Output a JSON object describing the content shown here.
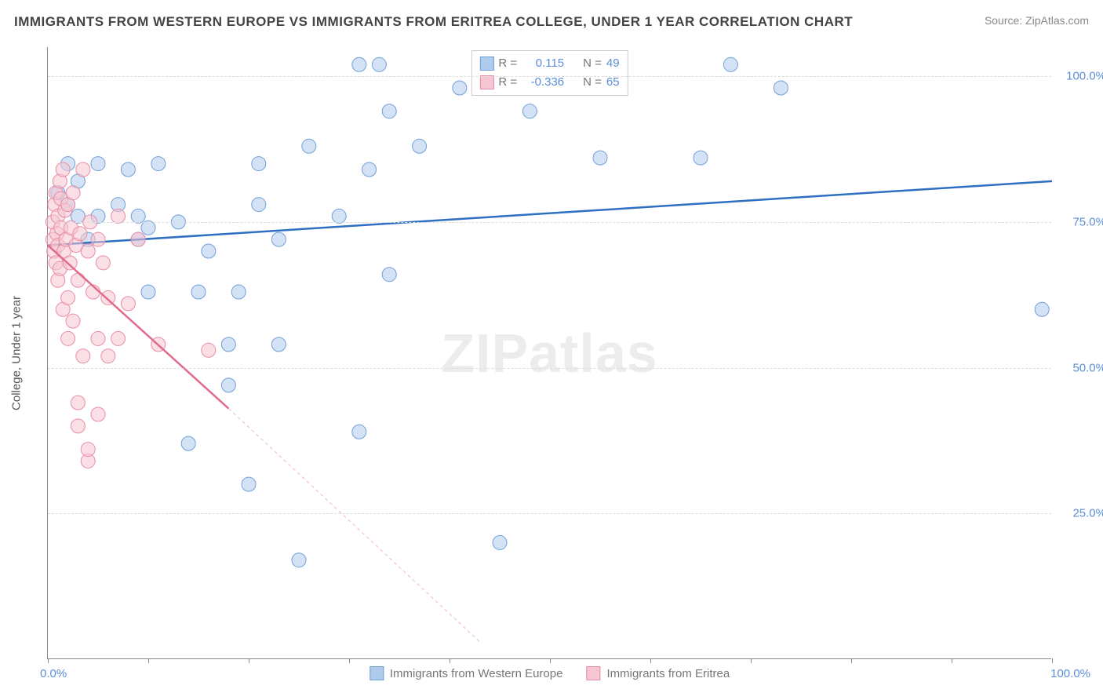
{
  "title": "IMMIGRANTS FROM WESTERN EUROPE VS IMMIGRANTS FROM ERITREA COLLEGE, UNDER 1 YEAR CORRELATION CHART",
  "source": "Source: ZipAtlas.com",
  "watermark": "ZIPatlas",
  "y_axis_title": "College, Under 1 year",
  "chart": {
    "type": "scatter",
    "xlim": [
      0,
      100
    ],
    "ylim": [
      0,
      105
    ],
    "x_ticks": [
      0,
      10,
      20,
      30,
      40,
      50,
      60,
      70,
      80,
      90,
      100
    ],
    "y_gridlines": [
      25,
      50,
      75,
      100
    ],
    "y_tick_labels": [
      "25.0%",
      "50.0%",
      "75.0%",
      "100.0%"
    ],
    "x_label_min": "0.0%",
    "x_label_max": "100.0%",
    "background_color": "#ffffff",
    "grid_color": "#dddddd",
    "series": [
      {
        "name": "Immigrants from Western Europe",
        "color_fill": "#aecbeb",
        "color_stroke": "#6f9fd8",
        "marker_opacity": 0.55,
        "marker_radius": 9,
        "r_value": "0.115",
        "n_value": "49",
        "trend": {
          "x1": 0,
          "y1": 71,
          "x2": 100,
          "y2": 82,
          "stroke": "#2f6fc2",
          "width": 2.5,
          "dash_extend": false
        },
        "points": [
          [
            1,
            80
          ],
          [
            2,
            78
          ],
          [
            2,
            85
          ],
          [
            3,
            76
          ],
          [
            3,
            82
          ],
          [
            4,
            72
          ],
          [
            5,
            76
          ],
          [
            5,
            85
          ],
          [
            7,
            78
          ],
          [
            8,
            84
          ],
          [
            9,
            72
          ],
          [
            9,
            76
          ],
          [
            10,
            63
          ],
          [
            10,
            74
          ],
          [
            11,
            85
          ],
          [
            13,
            75
          ],
          [
            14,
            37
          ],
          [
            15,
            63
          ],
          [
            16,
            70
          ],
          [
            18,
            47
          ],
          [
            18,
            54
          ],
          [
            19,
            63
          ],
          [
            20,
            30
          ],
          [
            21,
            85
          ],
          [
            21,
            78
          ],
          [
            23,
            54
          ],
          [
            23,
            72
          ],
          [
            25,
            17
          ],
          [
            26,
            88
          ],
          [
            29,
            76
          ],
          [
            31,
            102
          ],
          [
            31,
            39
          ],
          [
            32,
            84
          ],
          [
            33,
            102
          ],
          [
            34,
            94
          ],
          [
            34,
            66
          ],
          [
            37,
            88
          ],
          [
            41,
            98
          ],
          [
            45,
            20
          ],
          [
            48,
            94
          ],
          [
            55,
            86
          ],
          [
            65,
            86
          ],
          [
            68,
            102
          ],
          [
            73,
            98
          ],
          [
            99,
            60
          ]
        ]
      },
      {
        "name": "Immigrants from Eritrea",
        "color_fill": "#f6c6d2",
        "color_stroke": "#e98ba4",
        "marker_opacity": 0.55,
        "marker_radius": 9,
        "r_value": "-0.336",
        "n_value": "65",
        "trend": {
          "x1": 0,
          "y1": 71,
          "x2": 18,
          "y2": 43,
          "stroke": "#e26a8a",
          "width": 2.5,
          "dash_extend": true,
          "dash_x2": 43,
          "dash_y2": 3
        },
        "points": [
          [
            0.5,
            72
          ],
          [
            0.5,
            75
          ],
          [
            0.6,
            70
          ],
          [
            0.7,
            78
          ],
          [
            0.8,
            68
          ],
          [
            0.8,
            80
          ],
          [
            0.9,
            73
          ],
          [
            1,
            65
          ],
          [
            1,
            71
          ],
          [
            1,
            76
          ],
          [
            1.2,
            82
          ],
          [
            1.2,
            67
          ],
          [
            1.3,
            74
          ],
          [
            1.3,
            79
          ],
          [
            1.5,
            84
          ],
          [
            1.5,
            60
          ],
          [
            1.6,
            70
          ],
          [
            1.7,
            77
          ],
          [
            1.8,
            72
          ],
          [
            2,
            62
          ],
          [
            2,
            55
          ],
          [
            2,
            78
          ],
          [
            2.2,
            68
          ],
          [
            2.3,
            74
          ],
          [
            2.5,
            58
          ],
          [
            2.5,
            80
          ],
          [
            2.8,
            71
          ],
          [
            3,
            40
          ],
          [
            3,
            44
          ],
          [
            3,
            65
          ],
          [
            3.2,
            73
          ],
          [
            3.5,
            84
          ],
          [
            3.5,
            52
          ],
          [
            4,
            34
          ],
          [
            4,
            36
          ],
          [
            4,
            70
          ],
          [
            4.2,
            75
          ],
          [
            4.5,
            63
          ],
          [
            5,
            42
          ],
          [
            5,
            55
          ],
          [
            5,
            72
          ],
          [
            5.5,
            68
          ],
          [
            6,
            62
          ],
          [
            6,
            52
          ],
          [
            7,
            55
          ],
          [
            7,
            76
          ],
          [
            8,
            61
          ],
          [
            9,
            72
          ],
          [
            11,
            54
          ],
          [
            16,
            53
          ]
        ]
      }
    ],
    "legend_top_labels": {
      "r": "R =",
      "n": "N ="
    },
    "legend_bottom": [
      {
        "label": "Immigrants from Western Europe",
        "fill": "#aecbeb",
        "stroke": "#6f9fd8"
      },
      {
        "label": "Immigrants from Eritrea",
        "fill": "#f6c6d2",
        "stroke": "#e98ba4"
      }
    ]
  }
}
